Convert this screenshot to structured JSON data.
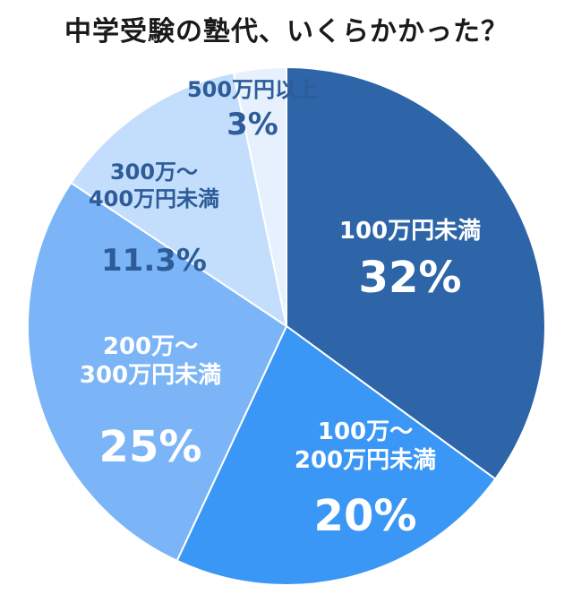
{
  "chart_data": {
    "type": "pie",
    "title": "中学受験の塾代、いくらかかった？",
    "slices": [
      {
        "label_lines": [
          "100万円未満"
        ],
        "value": 32,
        "value_label": "32%",
        "color": "#2d65a8",
        "text_color": "#ffffff"
      },
      {
        "label_lines": [
          "100万〜",
          "200万円未満"
        ],
        "value": 20,
        "value_label": "20%",
        "color": "#3a97f6",
        "text_color": "#ffffff"
      },
      {
        "label_lines": [
          "200万〜",
          "300万円未満"
        ],
        "value": 25,
        "value_label": "25%",
        "color": "#7bb5f7",
        "text_color": "#ffffff"
      },
      {
        "label_lines": [
          "300万〜",
          "400万円未満"
        ],
        "value": 11.3,
        "value_label": "11.3%",
        "color": "#c3defc",
        "text_color": "#2d5c99"
      },
      {
        "label_lines": [
          "500万円以上"
        ],
        "value": 3,
        "value_label": "3%",
        "color": "#e6f1fd",
        "text_color": "#2d5c99"
      }
    ]
  }
}
